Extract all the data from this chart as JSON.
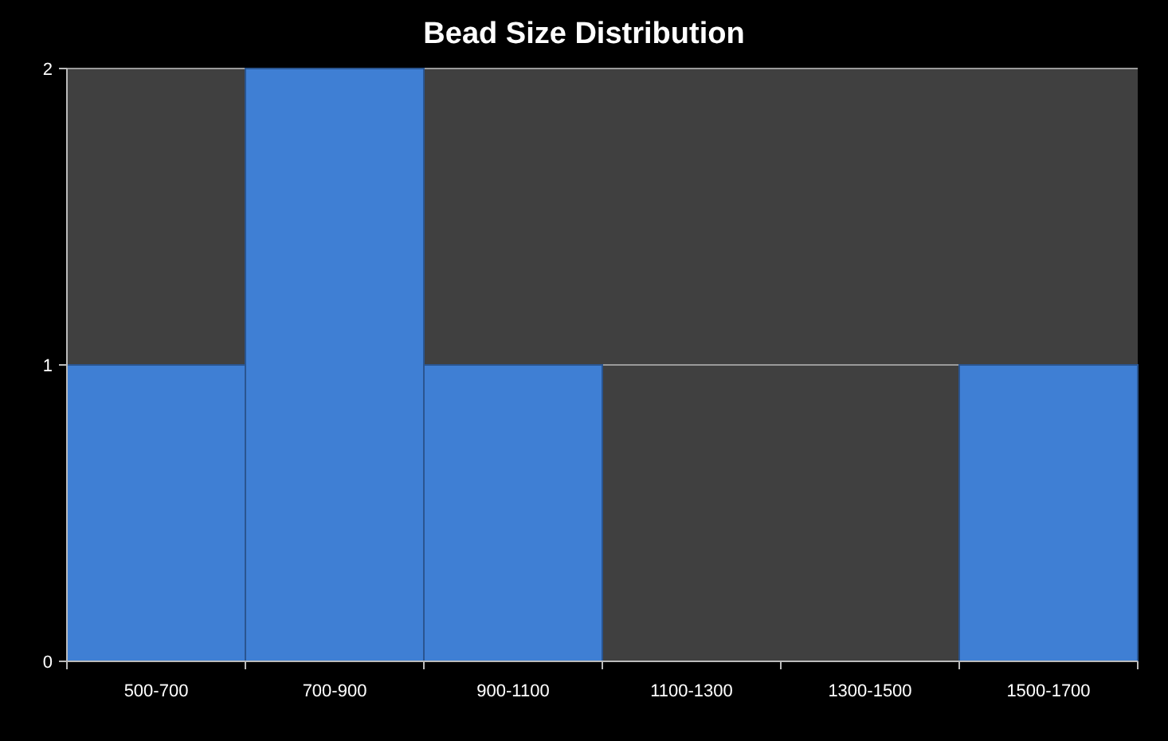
{
  "chart_data": {
    "type": "bar",
    "title": "Bead Size Distribution",
    "categories": [
      "500-700",
      "700-900",
      "900-1100",
      "1100-1300",
      "1300-1500",
      "1500-1700"
    ],
    "values": [
      1,
      2,
      1,
      0,
      0,
      1
    ],
    "color": "#3f7fd4",
    "ylim": [
      0,
      2
    ],
    "yticks": [
      0,
      1,
      2
    ],
    "grid": "y"
  }
}
